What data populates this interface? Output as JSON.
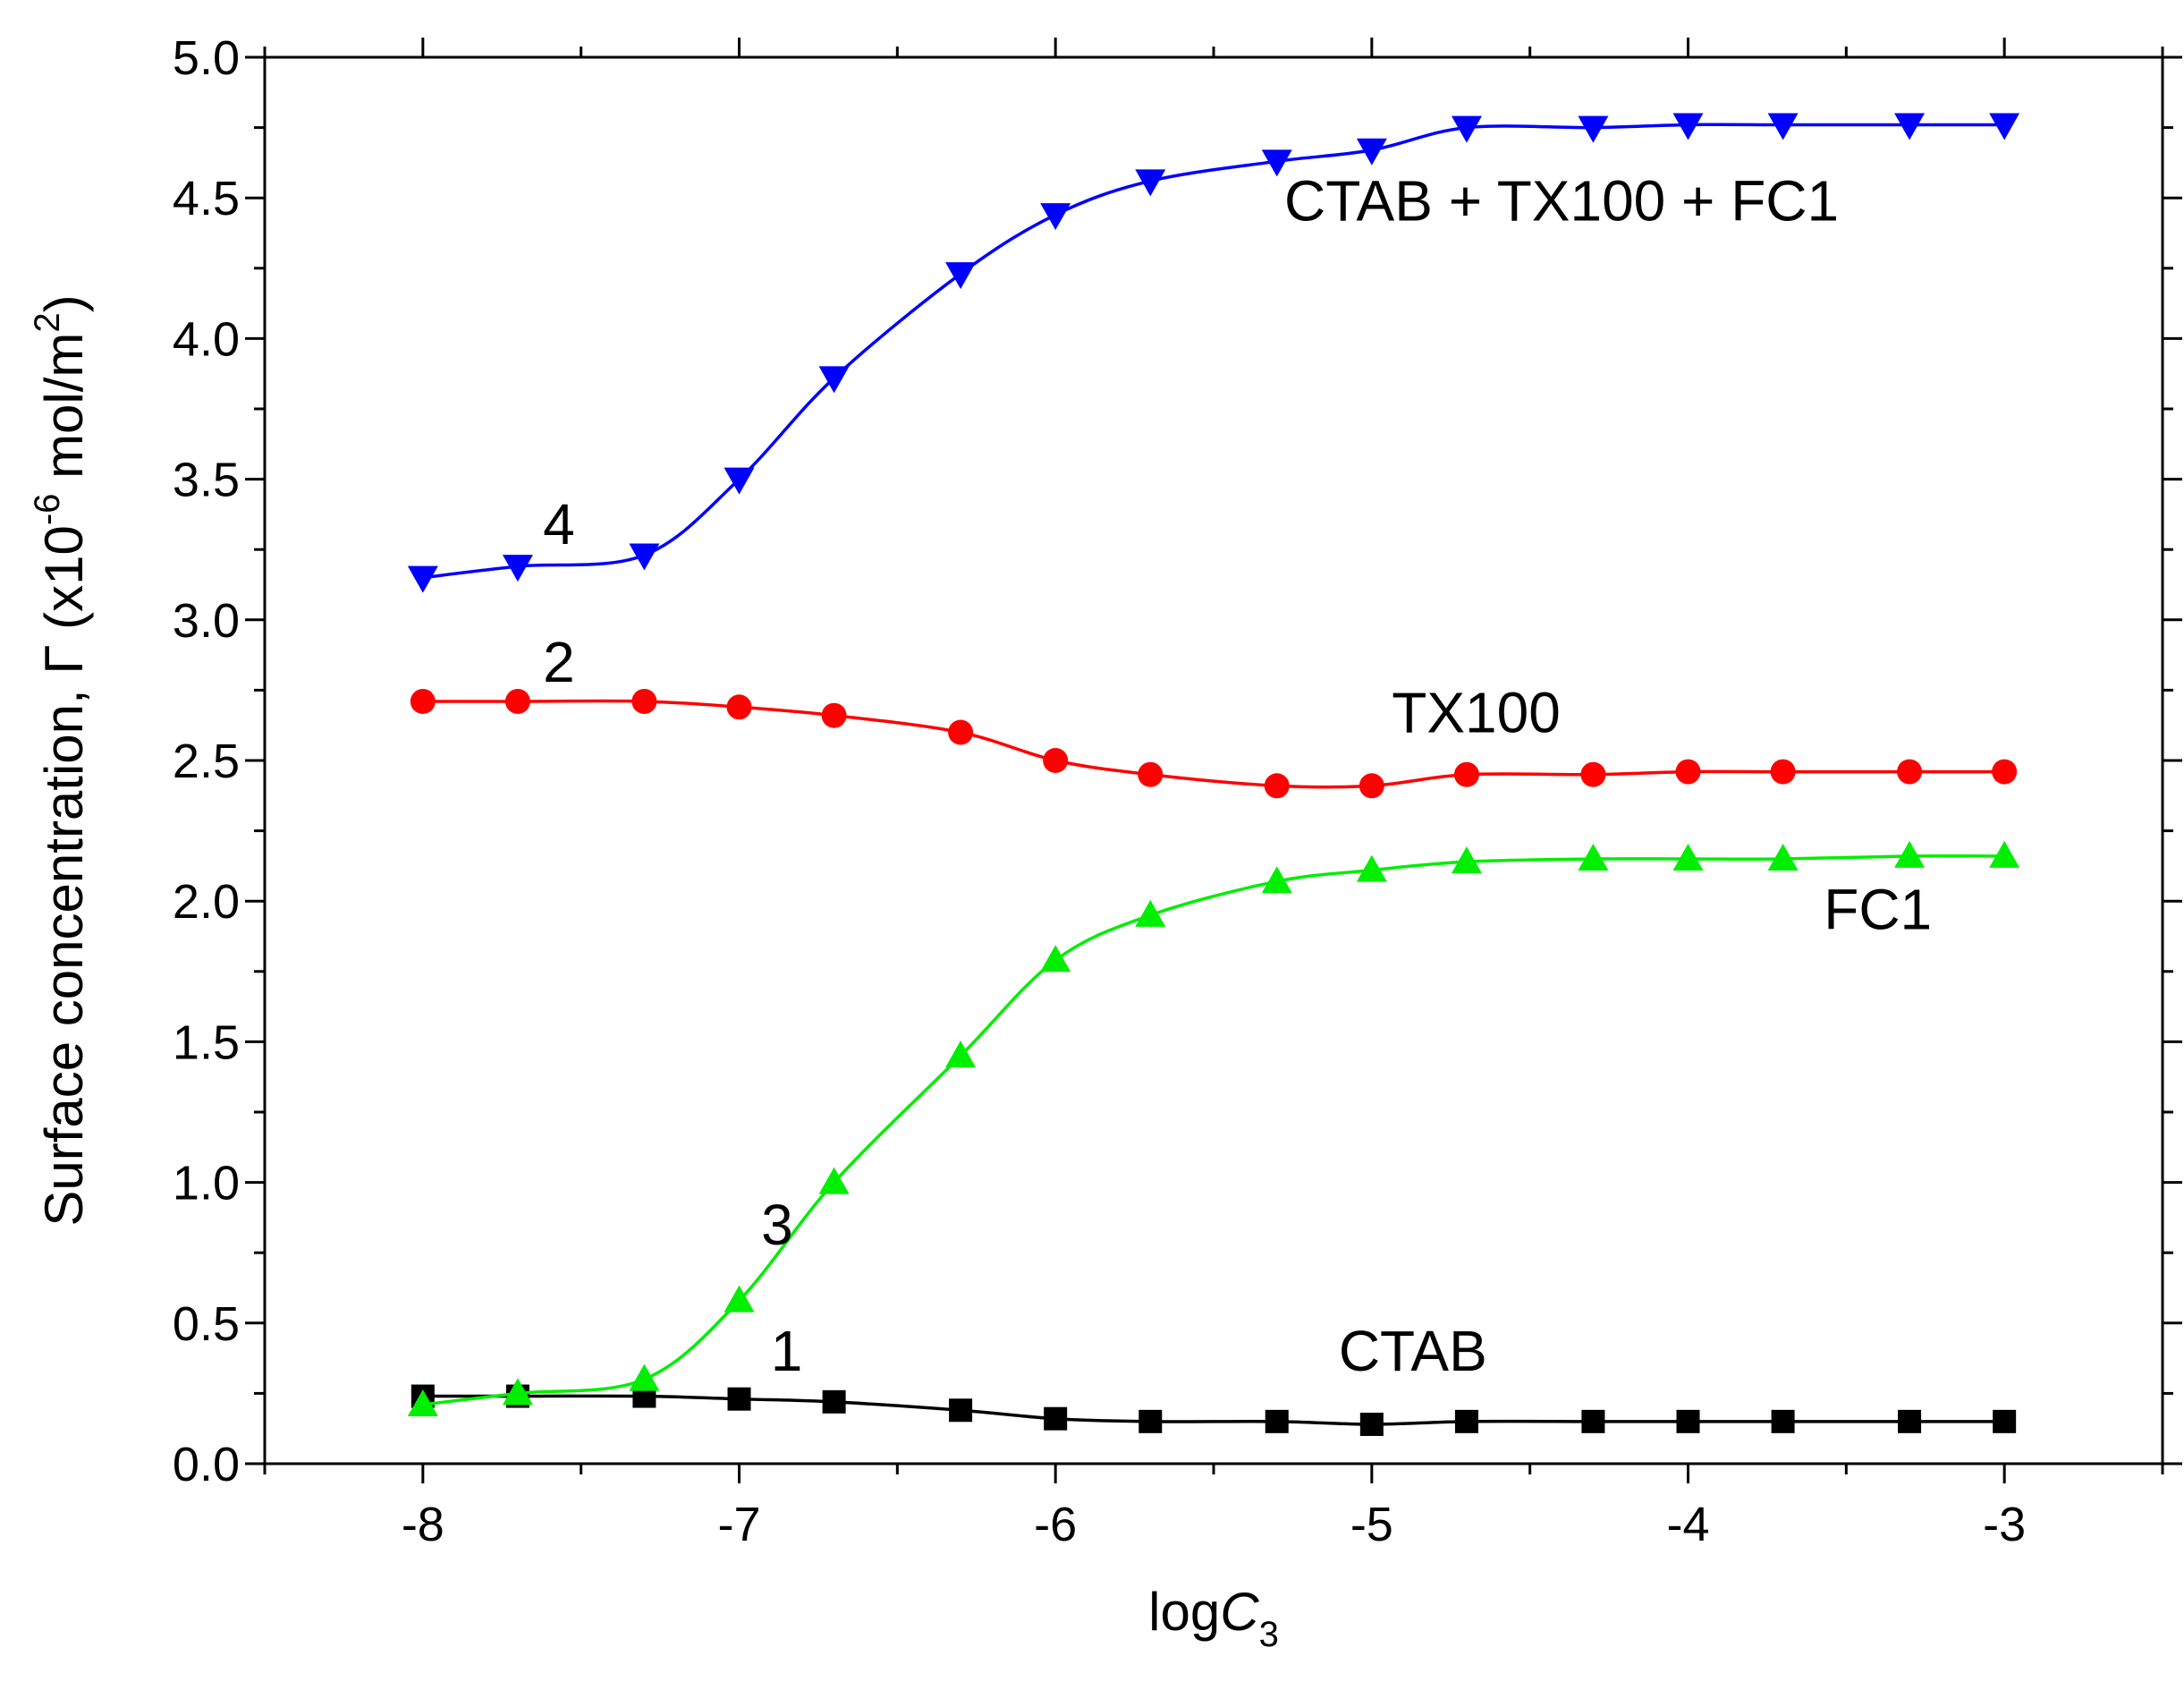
{
  "chart_data": {
    "type": "line",
    "title": "",
    "xlabel": {
      "prefix": "log",
      "variable": "C",
      "subscript": "3"
    },
    "ylabel": {
      "text": "Surface concentration, Γ (x10",
      "exponent": "-6",
      "unit": " mol/m",
      "unit_exponent": "2",
      "close": ")"
    },
    "xlim": [
      -8.5,
      -2.5
    ],
    "ylim": [
      0.0,
      5.0
    ],
    "xticks": [
      -8,
      -7,
      -6,
      -5,
      -4,
      -3
    ],
    "xtick_labels": [
      "-8",
      "-7",
      "-6",
      "-5",
      "-4",
      "-3"
    ],
    "yticks": [
      0.0,
      0.5,
      1.0,
      1.5,
      2.0,
      2.5,
      3.0,
      3.5,
      4.0,
      4.5,
      5.0
    ],
    "ytick_labels": [
      "0.0",
      "0.5",
      "1.0",
      "1.5",
      "2.0",
      "2.5",
      "3.0",
      "3.5",
      "4.0",
      "4.5",
      "5.0"
    ],
    "grid": false,
    "x": [
      -8,
      -7.7,
      -7.3,
      -7,
      -6.7,
      -6.3,
      -6,
      -5.7,
      -5.3,
      -5,
      -4.7,
      -4.3,
      -4,
      -3.7,
      -3.3,
      -3
    ],
    "series": [
      {
        "name": "CTAB",
        "number": "1",
        "marker": "square",
        "color": "#000000",
        "values": [
          0.24,
          0.24,
          0.24,
          0.23,
          0.22,
          0.19,
          0.16,
          0.15,
          0.15,
          0.14,
          0.15,
          0.15,
          0.15,
          0.15,
          0.15,
          0.15
        ]
      },
      {
        "name": "TX100",
        "number": "2",
        "marker": "circle",
        "color": "#ff0000",
        "values": [
          2.71,
          2.71,
          2.71,
          2.69,
          2.66,
          2.6,
          2.5,
          2.45,
          2.41,
          2.41,
          2.45,
          2.45,
          2.46,
          2.46,
          2.46,
          2.46
        ]
      },
      {
        "name": "FC1",
        "number": "3",
        "marker": "triangle-up",
        "color": "#00ee00",
        "values": [
          0.21,
          0.25,
          0.3,
          0.58,
          1.0,
          1.45,
          1.79,
          1.95,
          2.07,
          2.11,
          2.14,
          2.15,
          2.15,
          2.15,
          2.16,
          2.16
        ]
      },
      {
        "name": "CTAB + TX100 + FC1",
        "number": "4",
        "marker": "triangle-down",
        "color": "#0000ff",
        "values": [
          3.15,
          3.19,
          3.23,
          3.5,
          3.86,
          4.23,
          4.44,
          4.56,
          4.63,
          4.67,
          4.75,
          4.75,
          4.76,
          4.76,
          4.76,
          4.76
        ]
      }
    ],
    "annotations": {
      "name_labels": [
        {
          "series": "CTAB + TX100 + FC1",
          "text": "CTAB + TX100 + FC1",
          "x": -4.4,
          "y": 4.42
        },
        {
          "series": "TX100",
          "text": "TX100",
          "x": -4.67,
          "y": 2.6
        },
        {
          "series": "FC1",
          "text": "FC1",
          "x": -3.4,
          "y": 1.9
        },
        {
          "series": "CTAB",
          "text": "CTAB",
          "x": -4.87,
          "y": 0.33
        }
      ],
      "number_labels": [
        {
          "series": "CTAB + TX100 + FC1",
          "text": "4",
          "x": -7.57,
          "y": 3.27
        },
        {
          "series": "TX100",
          "text": "2",
          "x": -7.57,
          "y": 2.78
        },
        {
          "series": "FC1",
          "text": "3",
          "x": -6.88,
          "y": 0.78
        },
        {
          "series": "CTAB",
          "text": "1",
          "x": -6.85,
          "y": 0.33
        }
      ]
    }
  }
}
